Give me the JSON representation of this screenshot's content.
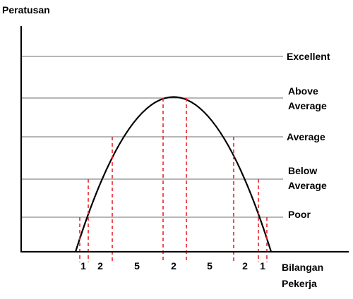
{
  "figure": {
    "y_axis_title": "Peratusan",
    "x_axis_title_line1": "Bilangan",
    "x_axis_title_line2": "Pekerja",
    "levels": [
      {
        "key": "excellent",
        "lines": [
          "Excellent"
        ]
      },
      {
        "key": "above-average",
        "lines": [
          "Above",
          "Average"
        ]
      },
      {
        "key": "average",
        "lines": [
          "Average"
        ]
      },
      {
        "key": "below-average",
        "lines": [
          "Below",
          "Average"
        ]
      },
      {
        "key": "poor",
        "lines": [
          "Poor"
        ]
      }
    ],
    "segment_counts": [
      "1",
      "2",
      "5",
      "2",
      "5",
      "2",
      "1"
    ],
    "colors": {
      "axis": "#000000",
      "level_line": "#8a8a8a",
      "curve": "#000000",
      "dashed_divider": "#e8262c",
      "text": "#000000"
    }
  }
}
